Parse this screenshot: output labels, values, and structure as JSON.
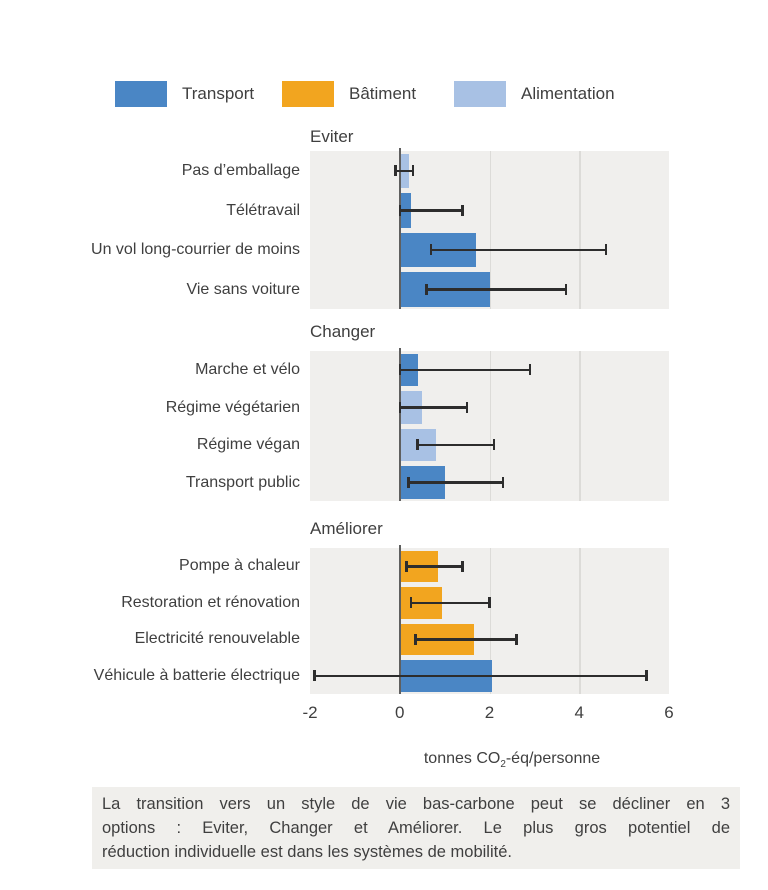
{
  "colors": {
    "transport": "#4a86c5",
    "batiment": "#f2a51f",
    "alimentation": "#a8c1e4",
    "panel_bg": "#f0efed",
    "grid_line": "#dcdbd8",
    "zero_line": "#5f5f5f",
    "error_bar": "#2d2d2d",
    "text": "#3f3f3f",
    "caption_bg": "#f0efec"
  },
  "legend": {
    "items": [
      {
        "key": "transport",
        "label": "Transport"
      },
      {
        "key": "batiment",
        "label": "Bâtiment"
      },
      {
        "key": "alimentation",
        "label": "Alimentation"
      }
    ]
  },
  "chart_data": {
    "type": "bar",
    "orientation": "horizontal",
    "unit": "tonnes CO2-éq/personne",
    "xlabel": {
      "prefix": "tonnes CO",
      "sub": "2",
      "suffix": "-éq/personne"
    },
    "axis": {
      "xmin": -2,
      "xmax": 6,
      "ticks": [
        -2,
        0,
        2,
        4,
        6
      ],
      "grid_ticks": [
        2,
        4
      ]
    },
    "panels": [
      {
        "title": "Eviter",
        "rows": [
          {
            "label": "Pas d’emballage",
            "series": "alimentation",
            "value": 0.2,
            "err_low": -0.1,
            "err_high": 0.3
          },
          {
            "label": "Télétravail",
            "series": "transport",
            "value": 0.25,
            "err_low": 0.0,
            "err_high": 1.4
          },
          {
            "label": "Un vol long-courrier de moins",
            "series": "transport",
            "value": 1.7,
            "err_low": 0.7,
            "err_high": 4.6
          },
          {
            "label": "Vie sans voiture",
            "series": "transport",
            "value": 2.0,
            "err_low": 0.6,
            "err_high": 3.7
          }
        ]
      },
      {
        "title": "Changer",
        "rows": [
          {
            "label": "Marche et vélo",
            "series": "transport",
            "value": 0.4,
            "err_low": 0.0,
            "err_high": 2.9
          },
          {
            "label": "Régime végétarien",
            "series": "alimentation",
            "value": 0.5,
            "err_low": 0.0,
            "err_high": 1.5
          },
          {
            "label": "Régime végan",
            "series": "alimentation",
            "value": 0.8,
            "err_low": 0.4,
            "err_high": 2.1
          },
          {
            "label": "Transport public",
            "series": "transport",
            "value": 1.0,
            "err_low": 0.2,
            "err_high": 2.3
          }
        ]
      },
      {
        "title": "Améliorer",
        "rows": [
          {
            "label": "Pompe à chaleur",
            "series": "batiment",
            "value": 0.85,
            "err_low": 0.15,
            "err_high": 1.4
          },
          {
            "label": "Restoration et rénovation",
            "series": "batiment",
            "value": 0.95,
            "err_low": 0.25,
            "err_high": 2.0
          },
          {
            "label": "Electricité renouvelable",
            "series": "batiment",
            "value": 1.65,
            "err_low": 0.35,
            "err_high": 2.6
          },
          {
            "label": "Véhicule à batterie électrique",
            "series": "transport",
            "value": 2.05,
            "err_low": -1.9,
            "err_high": 5.5
          }
        ]
      }
    ]
  },
  "caption": {
    "lines": [
      "La transition vers un style de vie bas-carbone peut se décliner en 3",
      "options : Eviter, Changer et Améliorer. Le plus gros potentiel de",
      "réduction individuelle est dans les systèmes de mobilité."
    ]
  }
}
